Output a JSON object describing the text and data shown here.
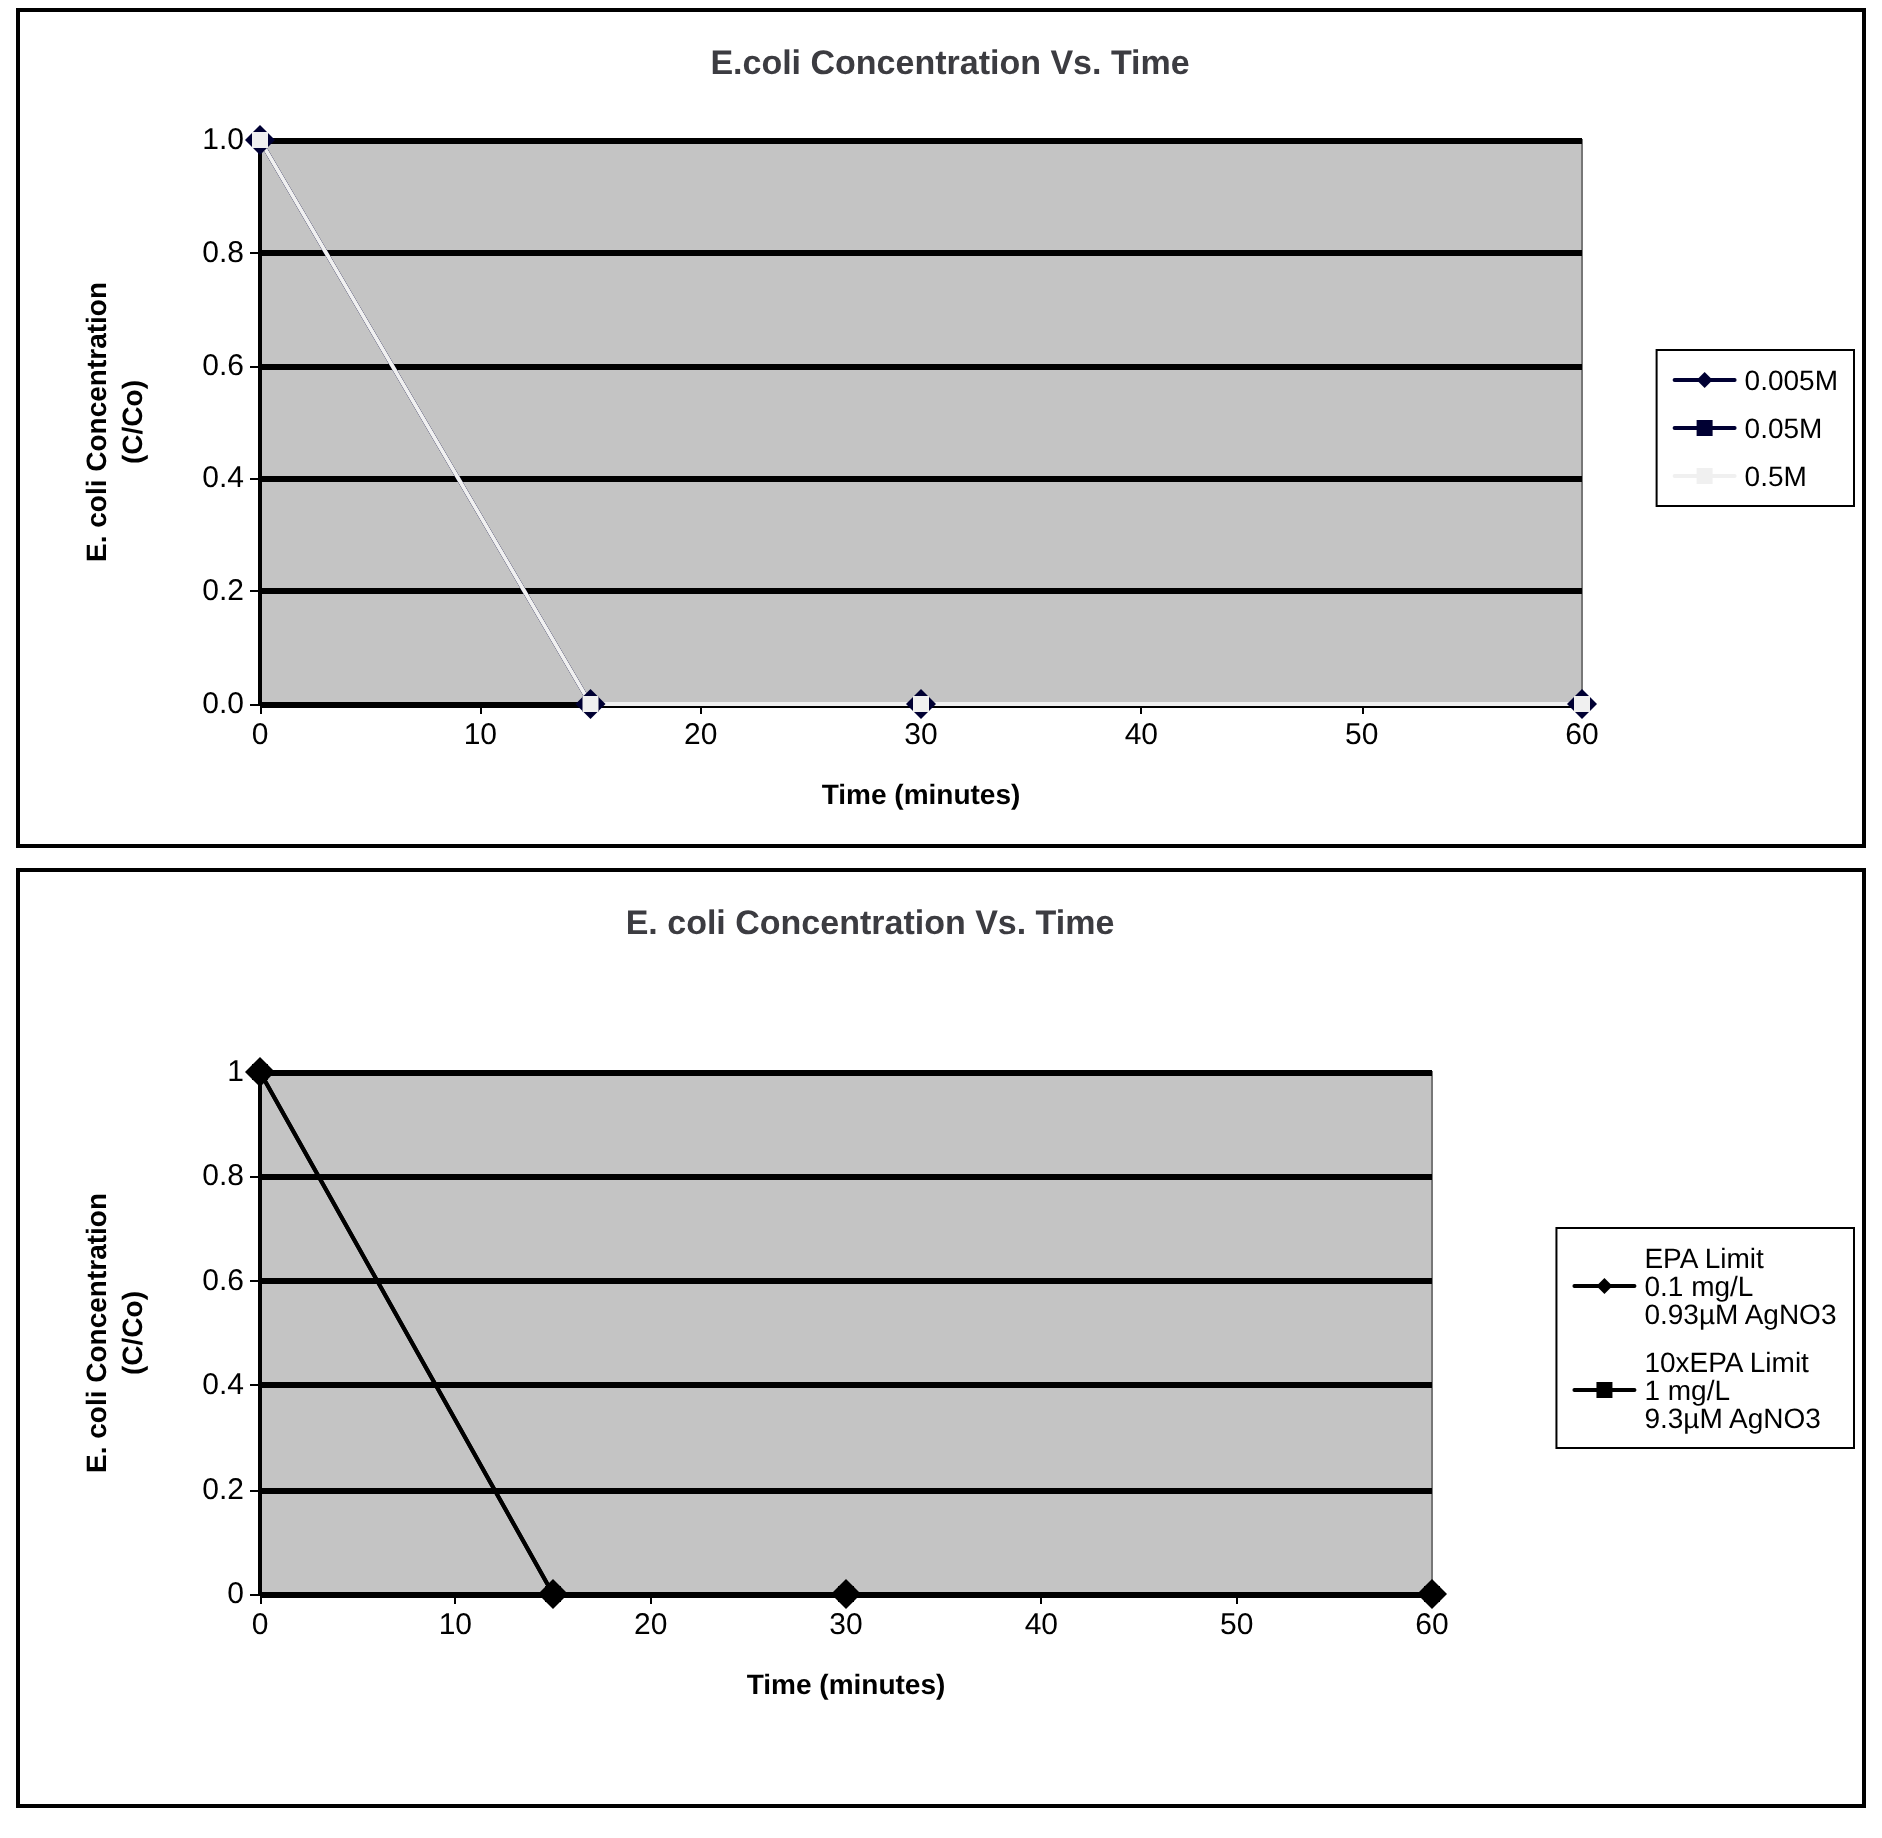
{
  "chart_data": [
    {
      "type": "line",
      "title": "E.coli Concentration Vs. Time",
      "xlabel": "Time (minutes)",
      "ylabel": "E. coli Concentration\n(C/Co)",
      "x": [
        0,
        15,
        30,
        60
      ],
      "xlim": [
        0,
        60
      ],
      "xticks": [
        0,
        10,
        20,
        30,
        40,
        50,
        60
      ],
      "ylim": [
        0,
        1
      ],
      "yticks": [
        {
          "value": 0,
          "label": "0.0"
        },
        {
          "value": 0.2,
          "label": "0.2"
        },
        {
          "value": 0.4,
          "label": "0.4"
        },
        {
          "value": 0.6,
          "label": "0.6"
        },
        {
          "value": 0.8,
          "label": "0.8"
        },
        {
          "value": 1,
          "label": "1.0"
        }
      ],
      "grid": "y",
      "legend": "right",
      "series": [
        {
          "name": "0.005M",
          "color": "#000033",
          "marker": "diamond",
          "values": [
            1,
            0,
            0,
            0
          ]
        },
        {
          "name": "0.05M",
          "color": "#000033",
          "marker": "square",
          "values": [
            1,
            0,
            0,
            0
          ]
        },
        {
          "name": "0.5M",
          "color": "#f0f0f0",
          "marker": "square",
          "values": [
            1,
            0,
            0,
            0
          ]
        }
      ]
    },
    {
      "type": "line",
      "title": "E. coli Concentration Vs. Time",
      "xlabel": "Time (minutes)",
      "ylabel": "E. coli Concentration\n(C/Co)",
      "x": [
        0,
        15,
        30,
        60
      ],
      "xlim": [
        0,
        60
      ],
      "xticks": [
        0,
        10,
        20,
        30,
        40,
        50,
        60
      ],
      "ylim": [
        0,
        1
      ],
      "yticks": [
        0,
        0.2,
        0.4,
        0.6,
        0.8,
        1
      ],
      "grid": "y",
      "legend": "right",
      "series": [
        {
          "name": "EPA Limit\n0.1 mg/L\n0.93µM AgNO3",
          "color": "#000000",
          "marker": "diamond",
          "values": [
            1,
            0,
            0,
            0
          ]
        },
        {
          "name": "10xEPA Limit\n1 mg/L\n9.3µM AgNO3",
          "color": "#000000",
          "marker": "square",
          "values": [
            1,
            0,
            0,
            0
          ]
        }
      ]
    }
  ]
}
